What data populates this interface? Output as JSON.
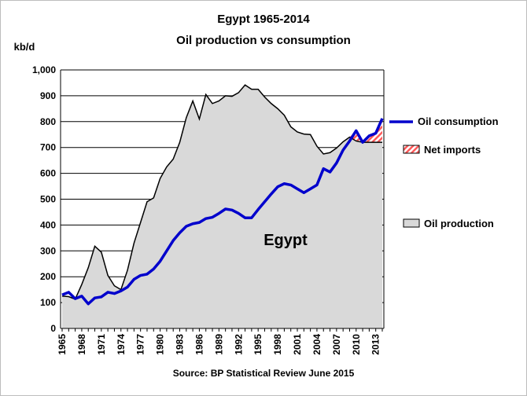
{
  "chart_data": {
    "type": "line",
    "title_line1": "Egypt 1965-2014",
    "title_line2": "Oil production vs consumption",
    "ylabel": "kb/d",
    "annotation": "Egypt",
    "source": "Source: BP Statistical Review  June 2015",
    "ylim": [
      0,
      1000
    ],
    "y_ticks": [
      "0",
      "100",
      "200",
      "300",
      "400",
      "500",
      "600",
      "700",
      "800",
      "900",
      "1,000"
    ],
    "x_tick_labels": [
      "1965",
      "1968",
      "1971",
      "1974",
      "1977",
      "1980",
      "1983",
      "1986",
      "1989",
      "1992",
      "1995",
      "1998",
      "2001",
      "2004",
      "2007",
      "2010",
      "2013"
    ],
    "x": [
      1965,
      1966,
      1967,
      1968,
      1969,
      1970,
      1971,
      1972,
      1973,
      1974,
      1975,
      1976,
      1977,
      1978,
      1979,
      1980,
      1981,
      1982,
      1983,
      1984,
      1985,
      1986,
      1987,
      1988,
      1989,
      1990,
      1991,
      1992,
      1993,
      1994,
      1995,
      1996,
      1997,
      1998,
      1999,
      2000,
      2001,
      2002,
      2003,
      2004,
      2005,
      2006,
      2007,
      2008,
      2009,
      2010,
      2011,
      2012,
      2013,
      2014
    ],
    "series": [
      {
        "name": "Oil consumption",
        "color": "#0000cc",
        "values": [
          130,
          140,
          115,
          125,
          95,
          118,
          122,
          140,
          135,
          145,
          160,
          190,
          205,
          210,
          230,
          260,
          300,
          340,
          370,
          395,
          405,
          410,
          425,
          430,
          445,
          462,
          458,
          445,
          428,
          428,
          460,
          490,
          520,
          548,
          560,
          555,
          540,
          525,
          540,
          555,
          618,
          605,
          640,
          690,
          725,
          765,
          720,
          745,
          755,
          812
        ]
      },
      {
        "name": "Oil production",
        "color": "#d9d9d9",
        "values": [
          125,
          123,
          113,
          170,
          235,
          318,
          295,
          205,
          165,
          150,
          225,
          330,
          410,
          490,
          505,
          580,
          625,
          655,
          720,
          815,
          880,
          810,
          905,
          870,
          880,
          900,
          898,
          912,
          942,
          925,
          925,
          895,
          870,
          850,
          825,
          780,
          760,
          752,
          750,
          705,
          675,
          680,
          698,
          722,
          740,
          725,
          720,
          720,
          720,
          720
        ]
      },
      {
        "name": "Net imports",
        "color": "#ff5a5a",
        "values": [
          0,
          0,
          0,
          0,
          0,
          0,
          0,
          0,
          0,
          0,
          0,
          0,
          0,
          0,
          0,
          0,
          0,
          0,
          0,
          0,
          0,
          0,
          0,
          0,
          0,
          0,
          0,
          0,
          0,
          0,
          0,
          0,
          0,
          0,
          0,
          0,
          0,
          0,
          0,
          0,
          0,
          0,
          0,
          0,
          0,
          45,
          0,
          25,
          35,
          92
        ]
      }
    ],
    "legend": [
      {
        "label": "Oil consumption",
        "color": "#0000cc"
      },
      {
        "label": "Net imports",
        "color": "#ff5a5a"
      },
      {
        "label": "Oil production",
        "color": "#d9d9d9"
      }
    ]
  }
}
